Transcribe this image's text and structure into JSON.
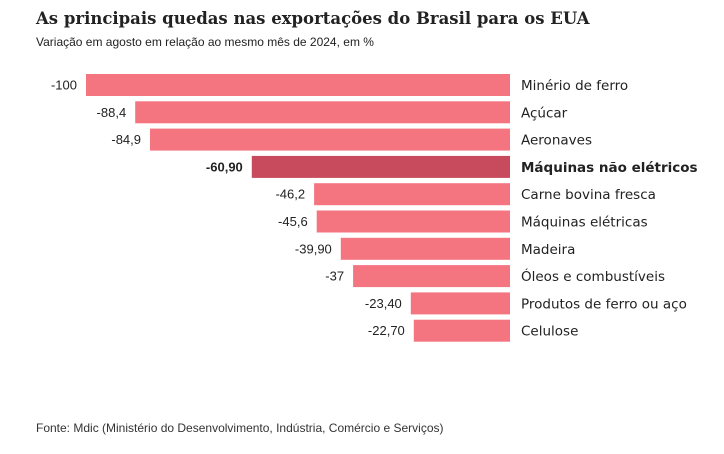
{
  "header": {
    "title": "As principais quedas nas exportações do Brasil para os EUA",
    "subtitle": "Variação em agosto em relação ao mesmo mês de 2024, em %"
  },
  "footer": {
    "source": "Fonte: Mdic (Ministério do Desenvolvimento, Indústria, Comércio e Serviços)"
  },
  "chart_data": {
    "type": "bar",
    "orientation": "horizontal",
    "categories": [
      "Minério de ferro",
      "Açúcar",
      "Aeronaves",
      "Máquinas não elétricos",
      "Carne bovina fresca",
      "Máquinas elétricas",
      "Madeira",
      "Óleos e combustíveis",
      "Produtos de ferro ou aço",
      "Celulose"
    ],
    "values": [
      -100,
      -88.4,
      -84.9,
      -60.9,
      -46.2,
      -45.6,
      -39.9,
      -37,
      -23.4,
      -22.7
    ],
    "value_labels": [
      "-100",
      "-88,4",
      "-84,9",
      "-60,90",
      "-46,2",
      "-45,6",
      "-39,90",
      "-37",
      "-23,40",
      "-22,70"
    ],
    "highlight_index": 3,
    "colors": {
      "bar": "#f47480",
      "highlight": "#c74a5d"
    },
    "xlim": [
      -100,
      0
    ],
    "title": "As principais quedas nas exportações do Brasil para os EUA",
    "subtitle": "Variação em agosto em relação ao mesmo mês de 2024, em %",
    "xlabel": "",
    "ylabel": "",
    "grid": false,
    "legend": "none"
  }
}
